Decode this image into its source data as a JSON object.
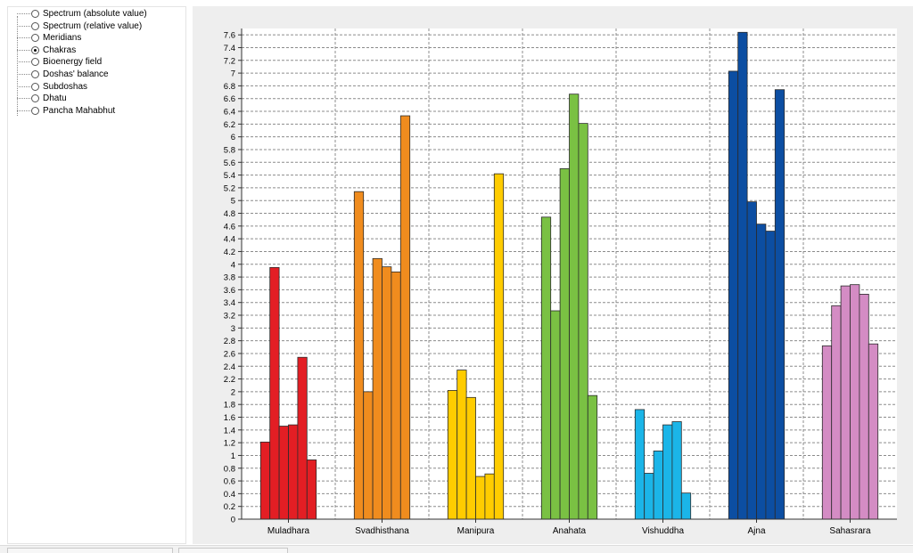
{
  "view_options": {
    "selected": "Chakras",
    "items": [
      "Spectrum (absolute value)",
      "Spectrum (relative value)",
      "Meridians",
      "Chakras",
      "Bioenergy field",
      "Doshas' balance",
      "Subdoshas",
      "Dhatu",
      "Pancha Mahabhut"
    ]
  },
  "chart_data": {
    "type": "bar",
    "title": "",
    "xlabel": "",
    "ylabel": "",
    "ylim": [
      0,
      7.7
    ],
    "ytick_step": 0.2,
    "grid": true,
    "categories": [
      "Muladhara",
      "Svadhisthana",
      "Manipura",
      "Anahata",
      "Vishuddha",
      "Ajna",
      "Sahasrara"
    ],
    "colors": [
      "#e31e24",
      "#f08c1e",
      "#ffcc00",
      "#7ac143",
      "#1bb5e8",
      "#0c4ea2",
      "#d48cc4"
    ],
    "groups": [
      [
        1.21,
        3.95,
        1.46,
        1.48,
        2.54,
        0.93
      ],
      [
        5.14,
        2.0,
        4.09,
        3.96,
        3.88,
        6.33
      ],
      [
        2.02,
        2.34,
        1.91,
        0.67,
        0.71,
        5.42
      ],
      [
        4.74,
        3.27,
        5.5,
        6.67,
        6.21,
        1.94
      ],
      [
        1.72,
        0.72,
        1.07,
        1.48,
        1.53,
        0.41
      ],
      [
        7.03,
        7.64,
        4.98,
        4.63,
        4.52,
        6.74
      ],
      [
        2.72,
        3.35,
        3.66,
        3.68,
        3.53,
        2.75
      ]
    ]
  }
}
